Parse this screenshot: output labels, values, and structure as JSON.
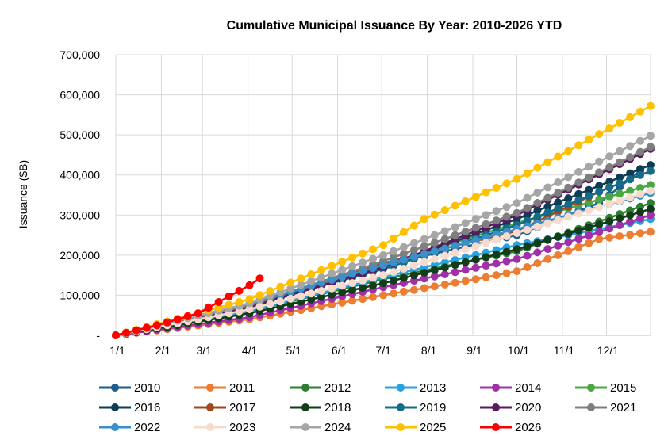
{
  "chart_data": {
    "type": "line",
    "title": "Cumulative Municipal Issuance By Year: 2010-2026 YTD",
    "xlabel": "",
    "ylabel": "Issuance ($B)",
    "ylim": [
      0,
      700000
    ],
    "y_ticks": [
      "-",
      "100,000",
      "200,000",
      "300,000",
      "400,000",
      "500,000",
      "600,000",
      "700,000"
    ],
    "y_tick_values": [
      0,
      100000,
      200000,
      300000,
      400000,
      500000,
      600000,
      700000
    ],
    "x_ticks": [
      "1/1",
      "2/1",
      "3/1",
      "4/1",
      "5/1",
      "6/1",
      "7/1",
      "8/1",
      "9/1",
      "10/1",
      "11/1",
      "12/1"
    ],
    "x_unit": "weeks since 1/1",
    "xlim": [
      0,
      52
    ],
    "grid": true,
    "legend_position": "bottom",
    "series": [
      {
        "name": "2010",
        "color": "#1f5d8c",
        "anchors": [
          [
            0,
            0
          ],
          [
            8,
            38000
          ],
          [
            13,
            75000
          ],
          [
            26,
            175000
          ],
          [
            39,
            250000
          ],
          [
            47,
            330000
          ],
          [
            51,
            410000
          ]
        ]
      },
      {
        "name": "2011",
        "color": "#ed7d31",
        "anchors": [
          [
            0,
            0
          ],
          [
            13,
            40000
          ],
          [
            26,
            100000
          ],
          [
            35,
            140000
          ],
          [
            39,
            160000
          ],
          [
            47,
            240000
          ],
          [
            52,
            258000
          ]
        ]
      },
      {
        "name": "2012",
        "color": "#2e7d32",
        "anchors": [
          [
            0,
            0
          ],
          [
            13,
            60000
          ],
          [
            26,
            140000
          ],
          [
            39,
            210000
          ],
          [
            52,
            330000
          ]
        ]
      },
      {
        "name": "2013",
        "color": "#29a3e0",
        "anchors": [
          [
            0,
            0
          ],
          [
            13,
            60000
          ],
          [
            26,
            145000
          ],
          [
            39,
            225000
          ],
          [
            52,
            290000
          ]
        ]
      },
      {
        "name": "2014",
        "color": "#a030a8",
        "anchors": [
          [
            0,
            0
          ],
          [
            13,
            45000
          ],
          [
            26,
            120000
          ],
          [
            39,
            190000
          ],
          [
            52,
            300000
          ]
        ]
      },
      {
        "name": "2015",
        "color": "#4aa843",
        "anchors": [
          [
            0,
            0
          ],
          [
            13,
            75000
          ],
          [
            26,
            175000
          ],
          [
            39,
            280000
          ],
          [
            52,
            375000
          ]
        ]
      },
      {
        "name": "2016",
        "color": "#0d3c55",
        "anchors": [
          [
            0,
            0
          ],
          [
            13,
            70000
          ],
          [
            26,
            170000
          ],
          [
            39,
            290000
          ],
          [
            52,
            425000
          ]
        ]
      },
      {
        "name": "2017",
        "color": "#9e4a1e",
        "anchors": [
          [
            0,
            0
          ],
          [
            13,
            70000
          ],
          [
            26,
            180000
          ],
          [
            39,
            260000
          ],
          [
            48,
            370000
          ]
        ]
      },
      {
        "name": "2018",
        "color": "#123d1a",
        "anchors": [
          [
            0,
            0
          ],
          [
            13,
            55000
          ],
          [
            26,
            130000
          ],
          [
            39,
            215000
          ],
          [
            52,
            315000
          ]
        ]
      },
      {
        "name": "2019",
        "color": "#146b8a",
        "anchors": [
          [
            0,
            0
          ],
          [
            13,
            75000
          ],
          [
            26,
            165000
          ],
          [
            39,
            275000
          ],
          [
            52,
            410000
          ]
        ]
      },
      {
        "name": "2020",
        "color": "#5c1a5e",
        "anchors": [
          [
            0,
            0
          ],
          [
            13,
            70000
          ],
          [
            26,
            170000
          ],
          [
            39,
            300000
          ],
          [
            52,
            465000
          ]
        ]
      },
      {
        "name": "2021",
        "color": "#7f7f7f",
        "anchors": [
          [
            0,
            0
          ],
          [
            13,
            75000
          ],
          [
            26,
            185000
          ],
          [
            39,
            305000
          ],
          [
            52,
            470000
          ]
        ]
      },
      {
        "name": "2022",
        "color": "#3a91c9",
        "anchors": [
          [
            0,
            0
          ],
          [
            13,
            80000
          ],
          [
            26,
            175000
          ],
          [
            39,
            265000
          ],
          [
            52,
            355000
          ]
        ]
      },
      {
        "name": "2023",
        "color": "#f7dccd",
        "anchors": [
          [
            0,
            0
          ],
          [
            13,
            65000
          ],
          [
            26,
            150000
          ],
          [
            39,
            255000
          ],
          [
            52,
            360000
          ]
        ]
      },
      {
        "name": "2024",
        "color": "#a6a6a6",
        "anchors": [
          [
            0,
            0
          ],
          [
            13,
            80000
          ],
          [
            26,
            200000
          ],
          [
            39,
            330000
          ],
          [
            52,
            498000
          ]
        ]
      },
      {
        "name": "2025",
        "color": "#ffc000",
        "anchors": [
          [
            0,
            0
          ],
          [
            13,
            90000
          ],
          [
            26,
            225000
          ],
          [
            30,
            290000
          ],
          [
            39,
            390000
          ],
          [
            52,
            572000
          ]
        ]
      },
      {
        "name": "2026",
        "color": "#ff0000",
        "anchors": [
          [
            0,
            0
          ],
          [
            4,
            25000
          ],
          [
            8,
            55000
          ],
          [
            13,
            125000
          ],
          [
            14,
            142000
          ]
        ]
      }
    ]
  }
}
